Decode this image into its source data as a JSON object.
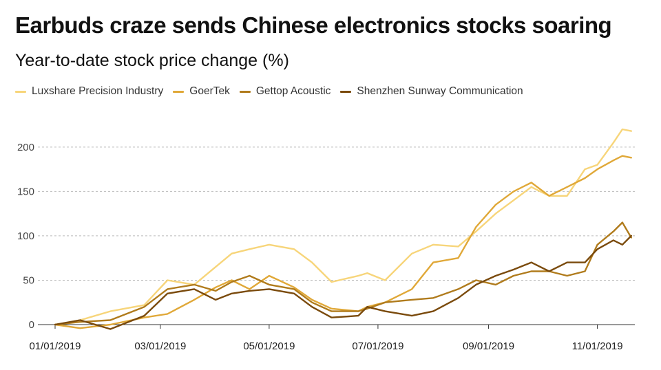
{
  "chart_data": {
    "type": "line",
    "title": "Earbuds craze sends Chinese electronics stocks soaring",
    "subtitle": "Year-to-date stock price change (%)",
    "xlabel": "",
    "ylabel": "",
    "xlim": [
      "2019-01-01",
      "2019-11-22"
    ],
    "ylim": [
      0,
      220
    ],
    "y_ticks": [
      0,
      50,
      100,
      150,
      200
    ],
    "x_tick_labels": [
      "01/01/2019",
      "03/01/2019",
      "05/01/2019",
      "07/01/2019",
      "09/01/2019",
      "11/01/2019"
    ],
    "x_ticks": [
      "2019-01-01",
      "2019-03-01",
      "2019-05-01",
      "2019-07-01",
      "2019-09-01",
      "2019-11-01"
    ],
    "grid": "horizontal-dashed",
    "legend": "top-left",
    "series": [
      {
        "name": "Luxshare Precision Industry",
        "color": "#f7d57a",
        "x": [
          "2019-01-01",
          "2019-01-15",
          "2019-02-01",
          "2019-02-20",
          "2019-03-05",
          "2019-03-20",
          "2019-04-01",
          "2019-04-10",
          "2019-04-20",
          "2019-05-01",
          "2019-05-15",
          "2019-05-25",
          "2019-06-05",
          "2019-06-20",
          "2019-06-25",
          "2019-07-05",
          "2019-07-20",
          "2019-08-01",
          "2019-08-15",
          "2019-08-25",
          "2019-09-05",
          "2019-09-15",
          "2019-09-25",
          "2019-10-05",
          "2019-10-15",
          "2019-10-25",
          "2019-11-01",
          "2019-11-10",
          "2019-11-15",
          "2019-11-20"
        ],
        "values": [
          0,
          5,
          15,
          22,
          50,
          45,
          65,
          80,
          85,
          90,
          85,
          70,
          48,
          55,
          58,
          50,
          80,
          90,
          88,
          105,
          125,
          140,
          155,
          145,
          145,
          175,
          180,
          205,
          220,
          218
        ]
      },
      {
        "name": "GoerTek",
        "color": "#e0a838",
        "x": [
          "2019-01-01",
          "2019-01-15",
          "2019-02-01",
          "2019-02-20",
          "2019-03-05",
          "2019-03-20",
          "2019-04-01",
          "2019-04-10",
          "2019-04-20",
          "2019-05-01",
          "2019-05-15",
          "2019-05-25",
          "2019-06-05",
          "2019-06-20",
          "2019-06-25",
          "2019-07-05",
          "2019-07-20",
          "2019-08-01",
          "2019-08-15",
          "2019-08-25",
          "2019-09-05",
          "2019-09-15",
          "2019-09-25",
          "2019-10-05",
          "2019-10-15",
          "2019-10-25",
          "2019-11-01",
          "2019-11-10",
          "2019-11-15",
          "2019-11-20"
        ],
        "values": [
          0,
          -4,
          0,
          8,
          12,
          28,
          42,
          50,
          40,
          55,
          42,
          28,
          18,
          15,
          20,
          25,
          40,
          70,
          75,
          110,
          135,
          150,
          160,
          145,
          155,
          165,
          175,
          185,
          190,
          188
        ]
      },
      {
        "name": "Gettop Acoustic",
        "color": "#b07b1c",
        "x": [
          "2019-01-01",
          "2019-01-15",
          "2019-02-01",
          "2019-02-20",
          "2019-03-05",
          "2019-03-20",
          "2019-04-01",
          "2019-04-10",
          "2019-04-20",
          "2019-05-01",
          "2019-05-15",
          "2019-05-25",
          "2019-06-05",
          "2019-06-20",
          "2019-06-25",
          "2019-07-05",
          "2019-07-20",
          "2019-08-01",
          "2019-08-15",
          "2019-08-25",
          "2019-09-05",
          "2019-09-15",
          "2019-09-25",
          "2019-10-05",
          "2019-10-15",
          "2019-10-25",
          "2019-11-01",
          "2019-11-10",
          "2019-11-15",
          "2019-11-20"
        ],
        "values": [
          0,
          3,
          5,
          20,
          40,
          45,
          38,
          48,
          55,
          45,
          40,
          25,
          15,
          15,
          18,
          25,
          28,
          30,
          40,
          50,
          45,
          55,
          60,
          60,
          55,
          60,
          90,
          105,
          115,
          98
        ]
      },
      {
        "name": "Shenzhen Sunway Communication",
        "color": "#7a4a0c",
        "x": [
          "2019-01-01",
          "2019-01-15",
          "2019-02-01",
          "2019-02-20",
          "2019-03-05",
          "2019-03-20",
          "2019-04-01",
          "2019-04-10",
          "2019-04-20",
          "2019-05-01",
          "2019-05-15",
          "2019-05-25",
          "2019-06-05",
          "2019-06-20",
          "2019-06-25",
          "2019-07-05",
          "2019-07-20",
          "2019-08-01",
          "2019-08-15",
          "2019-08-25",
          "2019-09-05",
          "2019-09-15",
          "2019-09-25",
          "2019-10-05",
          "2019-10-15",
          "2019-10-25",
          "2019-11-01",
          "2019-11-10",
          "2019-11-15",
          "2019-11-20"
        ],
        "values": [
          0,
          5,
          -5,
          10,
          35,
          40,
          28,
          35,
          38,
          40,
          35,
          20,
          8,
          10,
          20,
          15,
          10,
          15,
          30,
          45,
          55,
          62,
          70,
          60,
          70,
          70,
          85,
          95,
          90,
          100
        ]
      }
    ]
  }
}
